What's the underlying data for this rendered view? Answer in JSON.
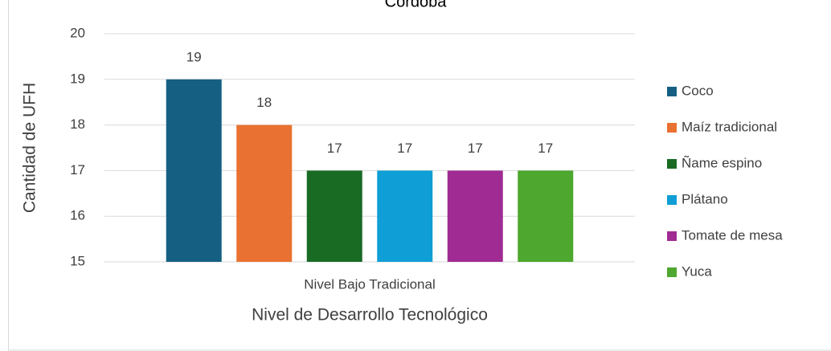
{
  "chart_data": {
    "type": "bar",
    "title": "Córdoba",
    "categories": [
      "Nivel Bajo Tradicional"
    ],
    "series": [
      {
        "name": "Coco",
        "color": "#156082",
        "values": [
          19
        ]
      },
      {
        "name": "Maíz tradicional",
        "color": "#e97132",
        "values": [
          18
        ]
      },
      {
        "name": "Ñame espino",
        "color": "#196b24",
        "values": [
          17
        ]
      },
      {
        "name": "Plátano",
        "color": "#0f9ed5",
        "values": [
          17
        ]
      },
      {
        "name": "Tomate de mesa",
        "color": "#a02b93",
        "values": [
          17
        ]
      },
      {
        "name": "Yuca",
        "color": "#4ea72e",
        "values": [
          17
        ]
      }
    ],
    "xlabel": "Nivel de Desarrollo Tecnológico",
    "ylabel": "Cantidad de UFH",
    "ylim": [
      15,
      20
    ],
    "yticks": [
      15,
      16,
      17,
      18,
      19,
      20
    ],
    "grid": true,
    "legend": "right"
  }
}
